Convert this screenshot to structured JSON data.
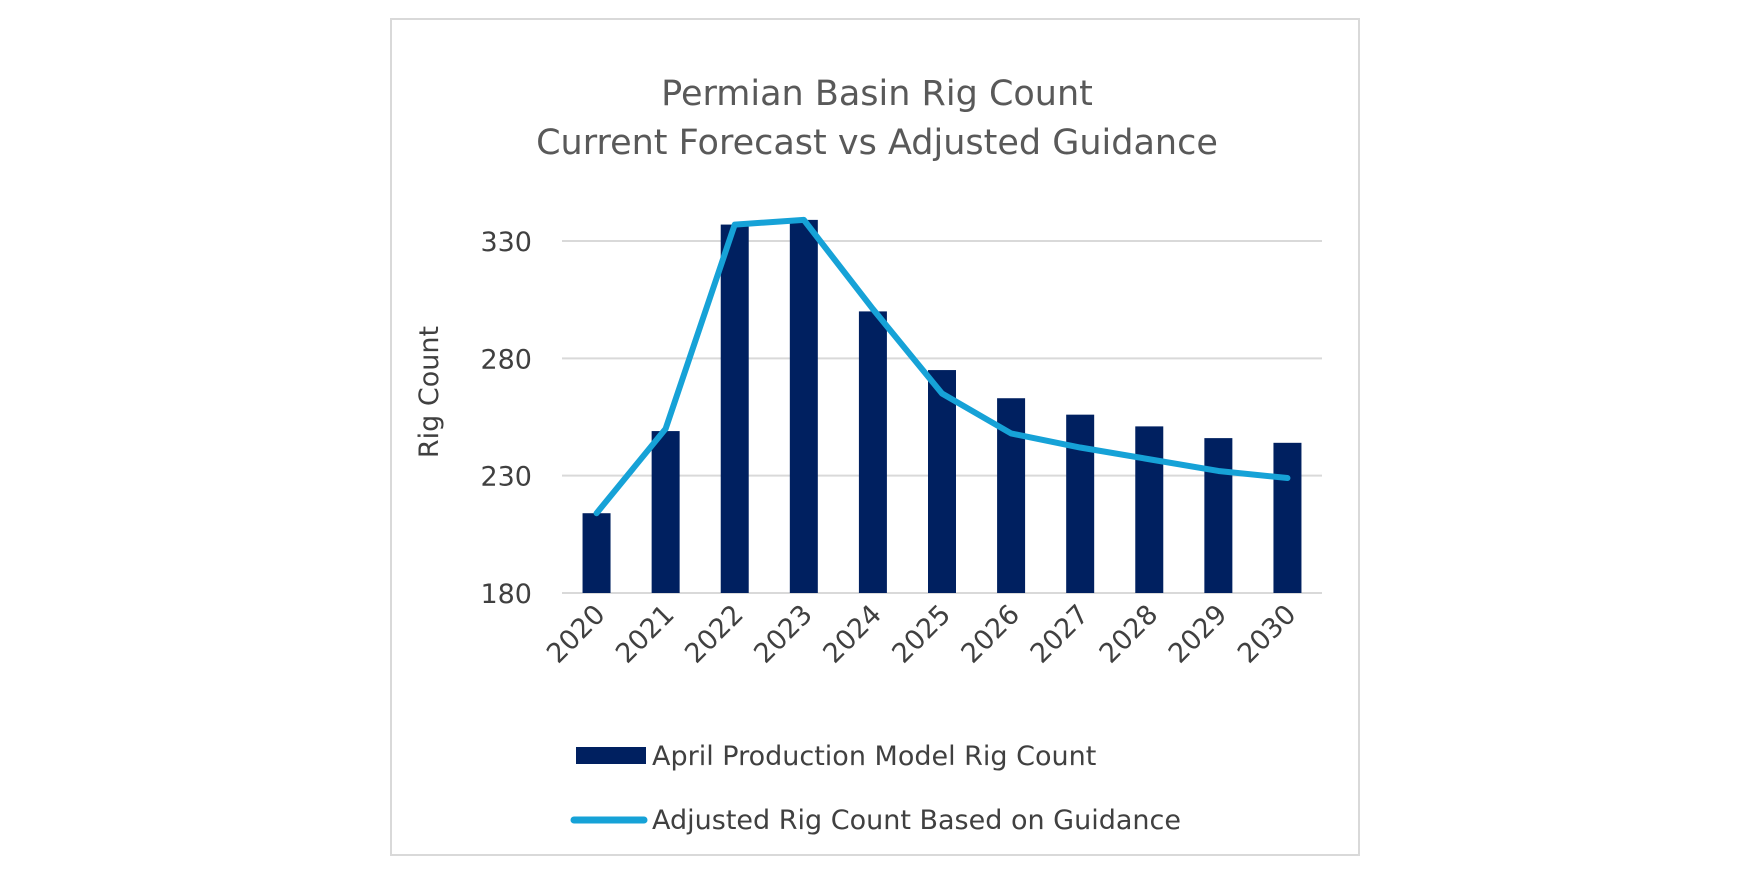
{
  "chart_data": {
    "type": "bar",
    "title_lines": [
      "Permian Basin Rig Count",
      "Current Forecast vs Adjusted Guidance"
    ],
    "xlabel": "",
    "ylabel": "Rig Count",
    "ylim": [
      180,
      330
    ],
    "yticks": [
      180,
      230,
      280,
      330
    ],
    "categories": [
      "2020",
      "2021",
      "2022",
      "2023",
      "2024",
      "2025",
      "2026",
      "2027",
      "2028",
      "2029",
      "2030"
    ],
    "series": [
      {
        "name": "April Production Model Rig Count",
        "type": "bar",
        "color": "#002060",
        "values": [
          214,
          249,
          337,
          339,
          300,
          275,
          263,
          256,
          251,
          246,
          244
        ]
      },
      {
        "name": "Adjusted Rig Count Based on Guidance",
        "type": "line",
        "color": "#16a2d7",
        "values": [
          214,
          250,
          337,
          339,
          301,
          265,
          248,
          242,
          237,
          232,
          229
        ]
      }
    ],
    "grid": true,
    "legend_position": "bottom"
  }
}
